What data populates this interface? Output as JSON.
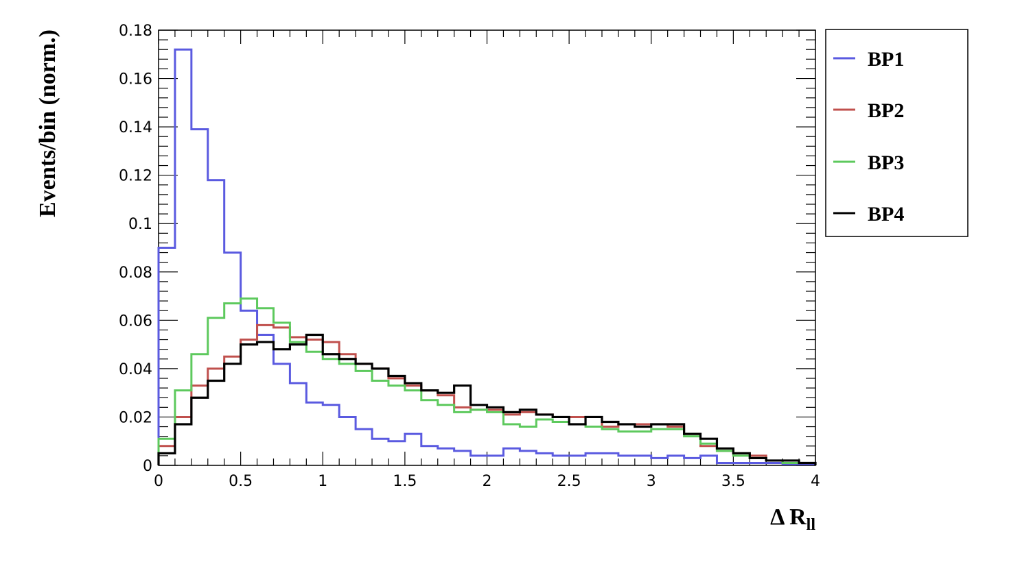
{
  "chart_data": {
    "type": "line",
    "style": "step-histogram",
    "xlabel_main": "Δ R",
    "xlabel_sub": "ll",
    "ylabel": "Events/bin (norm.)",
    "xlim": [
      0,
      4
    ],
    "ylim": [
      0,
      0.18
    ],
    "x_ticks": [
      "0",
      "0.5",
      "1",
      "1.5",
      "2",
      "2.5",
      "3",
      "3.5",
      "4"
    ],
    "y_ticks": [
      "0",
      "0.02",
      "0.04",
      "0.06",
      "0.08",
      "0.1",
      "0.12",
      "0.14",
      "0.16",
      "0.18"
    ],
    "bin_width": 0.1,
    "bin_low_edges": [
      0.0,
      0.1,
      0.2,
      0.3,
      0.4,
      0.5,
      0.6,
      0.7,
      0.8,
      0.9,
      1.0,
      1.1,
      1.2,
      1.3,
      1.4,
      1.5,
      1.6,
      1.7,
      1.8,
      1.9,
      2.0,
      2.1,
      2.2,
      2.3,
      2.4,
      2.5,
      2.6,
      2.7,
      2.8,
      2.9,
      3.0,
      3.1,
      3.2,
      3.3,
      3.4,
      3.5,
      3.6,
      3.7,
      3.8,
      3.9
    ],
    "grid": false,
    "legend_position": "right, outside plot",
    "series": [
      {
        "name": "BP1",
        "color": "#5a5ae0",
        "values": [
          0.09,
          0.172,
          0.139,
          0.118,
          0.088,
          0.064,
          0.054,
          0.042,
          0.034,
          0.026,
          0.025,
          0.02,
          0.015,
          0.011,
          0.01,
          0.013,
          0.008,
          0.007,
          0.006,
          0.004,
          0.004,
          0.007,
          0.006,
          0.005,
          0.004,
          0.004,
          0.005,
          0.005,
          0.004,
          0.004,
          0.003,
          0.004,
          0.003,
          0.004,
          0.001,
          0.001,
          0.001,
          0.001,
          0.0005,
          0.0005
        ]
      },
      {
        "name": "BP2",
        "color": "#c0504d",
        "values": [
          0.008,
          0.02,
          0.033,
          0.04,
          0.045,
          0.052,
          0.058,
          0.057,
          0.053,
          0.052,
          0.051,
          0.046,
          0.042,
          0.04,
          0.036,
          0.033,
          0.031,
          0.029,
          0.024,
          0.023,
          0.023,
          0.021,
          0.022,
          0.021,
          0.02,
          0.02,
          0.02,
          0.016,
          0.017,
          0.017,
          0.017,
          0.016,
          0.013,
          0.008,
          0.006,
          0.005,
          0.004,
          0.002,
          0.001,
          0.001
        ]
      },
      {
        "name": "BP3",
        "color": "#5dc95d",
        "values": [
          0.011,
          0.031,
          0.046,
          0.061,
          0.067,
          0.069,
          0.065,
          0.059,
          0.051,
          0.047,
          0.044,
          0.042,
          0.039,
          0.035,
          0.033,
          0.031,
          0.027,
          0.025,
          0.022,
          0.023,
          0.022,
          0.017,
          0.016,
          0.019,
          0.018,
          0.017,
          0.016,
          0.015,
          0.014,
          0.014,
          0.015,
          0.015,
          0.012,
          0.009,
          0.006,
          0.004,
          0.003,
          0.002,
          0.001,
          0.001
        ]
      },
      {
        "name": "BP4",
        "color": "#000000",
        "values": [
          0.005,
          0.017,
          0.028,
          0.035,
          0.042,
          0.05,
          0.051,
          0.048,
          0.05,
          0.054,
          0.046,
          0.044,
          0.042,
          0.04,
          0.037,
          0.034,
          0.031,
          0.03,
          0.033,
          0.025,
          0.024,
          0.022,
          0.023,
          0.021,
          0.02,
          0.017,
          0.02,
          0.018,
          0.017,
          0.016,
          0.017,
          0.017,
          0.013,
          0.011,
          0.007,
          0.005,
          0.003,
          0.002,
          0.002,
          0.001
        ]
      }
    ]
  }
}
